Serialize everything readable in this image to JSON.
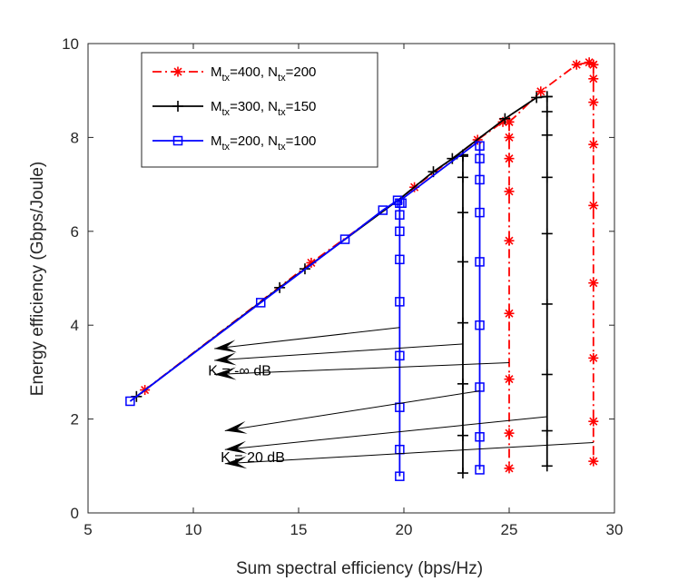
{
  "chart_data": {
    "type": "line",
    "title": "",
    "xlabel": "Sum spectral efficiency (bps/Hz)",
    "ylabel": "Energy efficiency (Gbps/Joule)",
    "xlim": [
      5,
      30
    ],
    "ylim": [
      0,
      10
    ],
    "xticks": [
      "5",
      "10",
      "15",
      "20",
      "25",
      "30"
    ],
    "yticks": [
      "0",
      "2",
      "4",
      "6",
      "8",
      "10"
    ],
    "grid": false,
    "legend_position": "top-left",
    "legend": [
      {
        "base": "M",
        "sub1": "tx",
        "mid": "=400, N",
        "sub2": "tx",
        "tail": "=200"
      },
      {
        "base": "M",
        "sub1": "tx",
        "mid": "=300, N",
        "sub2": "tx",
        "tail": "=150"
      },
      {
        "base": "M",
        "sub1": "tx",
        "mid": "=200, N",
        "sub2": "tx",
        "tail": "=100"
      }
    ],
    "series": [
      {
        "color": "#ff0000",
        "line_style": "dashdot",
        "marker": "asterisk",
        "curve": [
          [
            7.7,
            2.62
          ],
          [
            15.6,
            5.33
          ],
          [
            19.8,
            6.69
          ],
          [
            20.5,
            6.94
          ],
          [
            22.3,
            7.55
          ],
          [
            23.5,
            7.95
          ],
          [
            24.7,
            8.33
          ],
          [
            25.0,
            8.33
          ],
          [
            25.3,
            8.45
          ],
          [
            26.5,
            8.98
          ],
          [
            28.2,
            9.55
          ],
          [
            28.8,
            9.6
          ],
          [
            29.0,
            9.55
          ]
        ],
        "curve_markers": [
          [
            7.7,
            2.62
          ],
          [
            15.6,
            5.33
          ],
          [
            20.5,
            6.94
          ],
          [
            23.5,
            7.95
          ],
          [
            24.7,
            8.33
          ],
          [
            25.0,
            8.33
          ],
          [
            26.5,
            8.98
          ],
          [
            28.2,
            9.55
          ],
          [
            28.8,
            9.6
          ],
          [
            29.0,
            9.55
          ]
        ],
        "drops": [
          {
            "x": 25.0,
            "y_top": 8.33,
            "y_bottom": 0.95,
            "markers": [
              8.33,
              8.0,
              7.55,
              6.85,
              5.8,
              4.25,
              2.85,
              1.7,
              0.95
            ]
          },
          {
            "x": 29.0,
            "y_top": 9.55,
            "y_bottom": 1.1,
            "markers": [
              9.55,
              9.25,
              8.75,
              7.85,
              6.55,
              4.9,
              3.3,
              1.95,
              1.1
            ]
          }
        ]
      },
      {
        "color": "#000000",
        "line_style": "solid",
        "marker": "plus",
        "curve": [
          [
            7.3,
            2.48
          ],
          [
            14.1,
            4.8
          ],
          [
            15.3,
            5.2
          ],
          [
            19.8,
            6.69
          ],
          [
            21.4,
            7.27
          ],
          [
            22.3,
            7.55
          ],
          [
            22.8,
            7.63
          ],
          [
            22.3,
            7.55
          ],
          [
            24.8,
            8.4
          ],
          [
            26.3,
            8.85
          ],
          [
            26.8,
            8.87
          ]
        ],
        "curve_markers": [
          [
            7.3,
            2.48
          ],
          [
            14.1,
            4.8
          ],
          [
            15.3,
            5.2
          ],
          [
            21.4,
            7.27
          ],
          [
            22.3,
            7.55
          ],
          [
            22.8,
            7.63
          ],
          [
            24.8,
            8.4
          ],
          [
            26.3,
            8.85
          ],
          [
            26.8,
            8.87
          ]
        ],
        "drops": [
          {
            "x": 22.8,
            "y_top": 7.63,
            "y_bottom": 0.85,
            "markers": [
              7.6,
              7.15,
              6.4,
              5.35,
              4.05,
              2.75,
              1.65,
              0.85
            ]
          },
          {
            "x": 26.8,
            "y_top": 8.87,
            "y_bottom": 1.0,
            "markers": [
              8.87,
              8.55,
              8.05,
              7.15,
              5.95,
              4.45,
              2.95,
              1.75,
              1.0
            ]
          }
        ]
      },
      {
        "color": "#0000ff",
        "line_style": "solid",
        "marker": "square",
        "curve": [
          [
            7.0,
            2.38
          ],
          [
            13.2,
            4.48
          ],
          [
            17.2,
            5.83
          ],
          [
            19.0,
            6.45
          ],
          [
            19.7,
            6.66
          ],
          [
            19.9,
            6.6
          ],
          [
            19.8,
            6.65
          ],
          [
            23.5,
            7.9
          ]
        ],
        "curve_markers": [
          [
            7.0,
            2.38
          ],
          [
            13.2,
            4.48
          ],
          [
            17.2,
            5.83
          ],
          [
            19.0,
            6.45
          ],
          [
            19.7,
            6.66
          ],
          [
            19.9,
            6.6
          ]
        ],
        "drops": [
          {
            "x": 19.8,
            "y_top": 6.65,
            "y_bottom": 0.78,
            "markers": [
              6.6,
              6.35,
              6.0,
              5.4,
              4.5,
              3.35,
              2.25,
              1.35,
              0.78
            ]
          },
          {
            "x": 23.6,
            "y_top": 7.9,
            "y_bottom": 0.92,
            "markers": [
              7.82,
              7.55,
              7.1,
              6.4,
              5.35,
              4.0,
              2.68,
              1.62,
              0.92
            ]
          }
        ]
      }
    ],
    "annotations": [
      {
        "label": "K = -∞ dB",
        "label_at": [
          10.7,
          3.05
        ],
        "arrows": [
          {
            "from": [
              19.8,
              3.95
            ],
            "to": [
              11.0,
              3.5
            ]
          },
          {
            "from": [
              22.8,
              3.6
            ],
            "to": [
              11.0,
              3.25
            ]
          },
          {
            "from": [
              25.0,
              3.2
            ],
            "to": [
              11.0,
              2.95
            ]
          }
        ]
      },
      {
        "label": "K = 20 dB",
        "label_at": [
          11.3,
          1.2
        ],
        "arrows": [
          {
            "from": [
              23.6,
              2.6
            ],
            "to": [
              11.5,
              1.75
            ]
          },
          {
            "from": [
              26.8,
              2.05
            ],
            "to": [
              11.5,
              1.35
            ]
          },
          {
            "from": [
              29.0,
              1.5
            ],
            "to": [
              11.5,
              1.05
            ]
          }
        ]
      }
    ]
  }
}
